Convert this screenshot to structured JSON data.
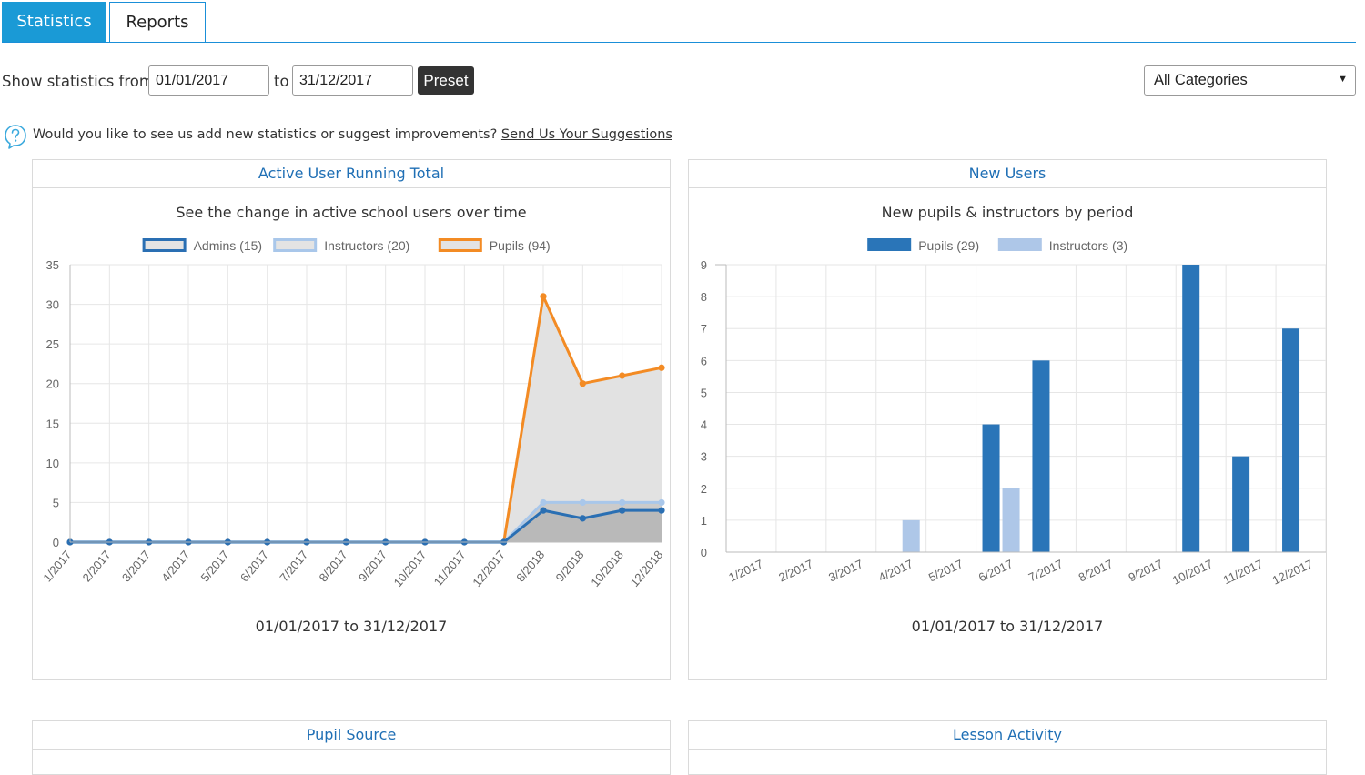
{
  "tabs": [
    "Statistics",
    "Reports"
  ],
  "filters": {
    "show_from_label": "Show statistics from",
    "from_value": "01/01/2017",
    "to_label": "to",
    "to_value": "31/12/2017",
    "preset_label": "Preset",
    "category_value": "All Categories"
  },
  "suggestion": {
    "text": "Would you like to see us add new statistics or suggest improvements?",
    "link": "Send Us Your Suggestions"
  },
  "panels": {
    "active_users": {
      "title": "Active User Running Total",
      "subtitle": "See the change in active school users over time",
      "range": "01/01/2017 to 31/12/2017"
    },
    "new_users": {
      "title": "New Users",
      "subtitle": "New pupils & instructors by period",
      "range": "01/01/2017 to 31/12/2017"
    },
    "pupil_source": {
      "title": "Pupil Source"
    },
    "lesson_activity": {
      "title": "Lesson Activity"
    }
  },
  "chart_data": [
    {
      "type": "line",
      "categories": [
        "1/2017",
        "2/2017",
        "3/2017",
        "4/2017",
        "5/2017",
        "6/2017",
        "7/2017",
        "8/2017",
        "9/2017",
        "10/2017",
        "11/2017",
        "12/2017",
        "8/2018",
        "9/2018",
        "10/2018",
        "12/2018"
      ],
      "series": [
        {
          "name": "Admins (15)",
          "color": "#2a6fb3",
          "values": [
            0,
            0,
            0,
            0,
            0,
            0,
            0,
            0,
            0,
            0,
            0,
            0,
            4,
            3,
            4,
            4
          ]
        },
        {
          "name": "Instructors (20)",
          "color": "#a9c7ea",
          "values": [
            0,
            0,
            0,
            0,
            0,
            0,
            0,
            0,
            0,
            0,
            0,
            0,
            5,
            5,
            5,
            5
          ]
        },
        {
          "name": "Pupils (94)",
          "color": "#f38b24",
          "values": [
            0,
            0,
            0,
            0,
            0,
            0,
            0,
            0,
            0,
            0,
            0,
            0,
            31,
            20,
            21,
            22
          ]
        }
      ],
      "ylim": [
        0,
        35
      ],
      "yticks": [
        0,
        5,
        10,
        15,
        20,
        25,
        30,
        35
      ],
      "grid": true,
      "legend": "top"
    },
    {
      "type": "bar",
      "categories": [
        "1/2017",
        "2/2017",
        "3/2017",
        "4/2017",
        "5/2017",
        "6/2017",
        "7/2017",
        "8/2017",
        "9/2017",
        "10/2017",
        "11/2017",
        "12/2017"
      ],
      "series": [
        {
          "name": "Pupils (29)",
          "color": "#2a75b8",
          "values": [
            0,
            0,
            0,
            0,
            0,
            4,
            6,
            0,
            0,
            9,
            3,
            7
          ]
        },
        {
          "name": "Instructors (3)",
          "color": "#aec7e8",
          "values": [
            0,
            0,
            0,
            1,
            0,
            2,
            0,
            0,
            0,
            0,
            0,
            0
          ]
        }
      ],
      "ylim": [
        0,
        9
      ],
      "yticks": [
        0,
        1,
        2,
        3,
        4,
        5,
        6,
        7,
        8,
        9
      ],
      "grid": true,
      "legend": "top"
    }
  ]
}
